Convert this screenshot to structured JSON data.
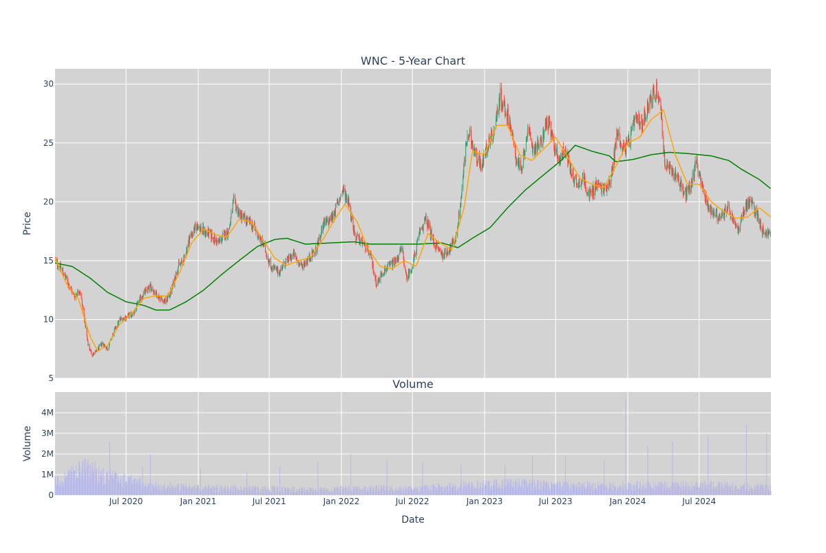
{
  "chart_data": [
    {
      "type": "candlestick",
      "title": "WNC - 5-Year Chart",
      "ylabel": "Price",
      "xlabel": "",
      "ylim": [
        5,
        31.3
      ],
      "yticks": [
        5,
        10,
        15,
        20,
        25,
        30
      ],
      "x_range": [
        "2020-01-02",
        "2024-12-31"
      ],
      "x_ticks": [
        {
          "date": "2020-07-01",
          "label": "Jul 2020"
        },
        {
          "date": "2021-01-01",
          "label": "Jan 2021"
        },
        {
          "date": "2021-07-01",
          "label": "Jul 2021"
        },
        {
          "date": "2022-01-01",
          "label": "Jan 2022"
        },
        {
          "date": "2022-07-01",
          "label": "Jul 2022"
        },
        {
          "date": "2023-01-01",
          "label": "Jan 2023"
        },
        {
          "date": "2023-07-01",
          "label": "Jul 2023"
        },
        {
          "date": "2024-01-01",
          "label": "Jan 2024"
        },
        {
          "date": "2024-07-01",
          "label": "Jul 2024"
        }
      ],
      "colors": {
        "up": "#3d9970",
        "down": "#ff4136",
        "ma_short": "#ffa500",
        "ma_long": "#008000",
        "plot_bg": "#d3d3d3",
        "grid": "#ffffff"
      },
      "price_keypoints": [
        [
          "2020-01-02",
          15.0
        ],
        [
          "2020-01-20",
          14.2
        ],
        [
          "2020-02-05",
          13.0
        ],
        [
          "2020-02-20",
          12.0
        ],
        [
          "2020-03-05",
          12.5
        ],
        [
          "2020-03-15",
          10.5
        ],
        [
          "2020-03-25",
          8.0
        ],
        [
          "2020-04-05",
          7.0
        ],
        [
          "2020-04-15",
          7.2
        ],
        [
          "2020-05-01",
          8.0
        ],
        [
          "2020-05-15",
          7.5
        ],
        [
          "2020-06-01",
          9.0
        ],
        [
          "2020-06-15",
          10.0
        ],
        [
          "2020-07-01",
          10.2
        ],
        [
          "2020-07-20",
          10.5
        ],
        [
          "2020-08-10",
          12.0
        ],
        [
          "2020-09-01",
          12.8
        ],
        [
          "2020-09-20",
          12.0
        ],
        [
          "2020-10-10",
          11.5
        ],
        [
          "2020-10-25",
          12.5
        ],
        [
          "2020-11-10",
          14.5
        ],
        [
          "2020-11-25",
          15.0
        ],
        [
          "2020-12-10",
          17.0
        ],
        [
          "2020-12-30",
          18.0
        ],
        [
          "2021-01-15",
          17.5
        ],
        [
          "2021-02-01",
          17.2
        ],
        [
          "2021-02-20",
          16.5
        ],
        [
          "2021-03-05",
          17.0
        ],
        [
          "2021-03-20",
          17.5
        ],
        [
          "2021-04-01",
          20.0
        ],
        [
          "2021-04-15",
          19.0
        ],
        [
          "2021-05-01",
          18.5
        ],
        [
          "2021-05-20",
          18.0
        ],
        [
          "2021-06-05",
          17.0
        ],
        [
          "2021-06-20",
          16.0
        ],
        [
          "2021-07-05",
          14.5
        ],
        [
          "2021-07-25",
          14.0
        ],
        [
          "2021-08-10",
          14.8
        ],
        [
          "2021-09-01",
          15.5
        ],
        [
          "2021-09-20",
          14.5
        ],
        [
          "2021-10-10",
          15.2
        ],
        [
          "2021-10-30",
          16.0
        ],
        [
          "2021-11-15",
          18.0
        ],
        [
          "2021-12-05",
          18.5
        ],
        [
          "2021-12-25",
          20.0
        ],
        [
          "2022-01-05",
          21.0
        ],
        [
          "2022-01-20",
          20.0
        ],
        [
          "2022-02-05",
          17.0
        ],
        [
          "2022-02-25",
          16.5
        ],
        [
          "2022-03-15",
          15.5
        ],
        [
          "2022-04-01",
          13.0
        ],
        [
          "2022-04-15",
          14.0
        ],
        [
          "2022-05-01",
          14.5
        ],
        [
          "2022-05-20",
          15.0
        ],
        [
          "2022-06-05",
          16.0
        ],
        [
          "2022-06-15",
          13.5
        ],
        [
          "2022-07-01",
          14.5
        ],
        [
          "2022-07-20",
          17.5
        ],
        [
          "2022-08-05",
          18.5
        ],
        [
          "2022-08-25",
          16.5
        ],
        [
          "2022-09-15",
          15.5
        ],
        [
          "2022-10-05",
          16.0
        ],
        [
          "2022-10-20",
          17.0
        ],
        [
          "2022-11-01",
          20.0
        ],
        [
          "2022-11-15",
          25.0
        ],
        [
          "2022-11-25",
          25.5
        ],
        [
          "2022-12-10",
          24.0
        ],
        [
          "2022-12-25",
          23.0
        ],
        [
          "2023-01-10",
          25.0
        ],
        [
          "2023-01-25",
          26.0
        ],
        [
          "2023-02-10",
          29.0
        ],
        [
          "2023-02-20",
          28.0
        ],
        [
          "2023-03-05",
          27.0
        ],
        [
          "2023-03-20",
          24.0
        ],
        [
          "2023-04-05",
          22.5
        ],
        [
          "2023-04-20",
          26.0
        ],
        [
          "2023-05-05",
          24.5
        ],
        [
          "2023-05-25",
          25.0
        ],
        [
          "2023-06-10",
          27.0
        ],
        [
          "2023-06-25",
          25.0
        ],
        [
          "2023-07-10",
          23.5
        ],
        [
          "2023-07-25",
          24.5
        ],
        [
          "2023-08-10",
          22.5
        ],
        [
          "2023-08-25",
          21.5
        ],
        [
          "2023-09-10",
          22.0
        ],
        [
          "2023-09-25",
          20.5
        ],
        [
          "2023-10-15",
          21.5
        ],
        [
          "2023-11-01",
          21.0
        ],
        [
          "2023-11-20",
          22.0
        ],
        [
          "2023-12-05",
          26.0
        ],
        [
          "2023-12-20",
          24.5
        ],
        [
          "2024-01-05",
          25.0
        ],
        [
          "2024-01-20",
          27.0
        ],
        [
          "2024-02-05",
          26.5
        ],
        [
          "2024-02-25",
          28.5
        ],
        [
          "2024-03-15",
          29.5
        ],
        [
          "2024-03-25",
          28.0
        ],
        [
          "2024-04-05",
          23.0
        ],
        [
          "2024-04-25",
          22.5
        ],
        [
          "2024-05-10",
          22.0
        ],
        [
          "2024-05-25",
          20.5
        ],
        [
          "2024-06-10",
          21.5
        ],
        [
          "2024-06-25",
          23.5
        ],
        [
          "2024-07-10",
          21.0
        ],
        [
          "2024-07-25",
          19.5
        ],
        [
          "2024-08-10",
          19.0
        ],
        [
          "2024-08-25",
          18.5
        ],
        [
          "2024-09-10",
          19.5
        ],
        [
          "2024-09-25",
          18.5
        ],
        [
          "2024-10-10",
          17.5
        ],
        [
          "2024-10-25",
          19.5
        ],
        [
          "2024-11-10",
          20.0
        ],
        [
          "2024-11-25",
          19.0
        ],
        [
          "2024-12-10",
          17.5
        ],
        [
          "2024-12-31",
          17.2
        ]
      ],
      "sma_short_keypoints": [
        [
          "2020-01-02",
          15.2
        ],
        [
          "2020-02-01",
          13.0
        ],
        [
          "2020-03-01",
          11.8
        ],
        [
          "2020-04-01",
          8.5
        ],
        [
          "2020-04-20",
          7.3
        ],
        [
          "2020-05-15",
          7.8
        ],
        [
          "2020-06-15",
          9.6
        ],
        [
          "2020-07-15",
          10.5
        ],
        [
          "2020-08-15",
          11.8
        ],
        [
          "2020-09-15",
          12.0
        ],
        [
          "2020-10-15",
          12.0
        ],
        [
          "2020-11-15",
          14.0
        ],
        [
          "2020-12-15",
          16.5
        ],
        [
          "2021-01-15",
          17.7
        ],
        [
          "2021-02-15",
          17.2
        ],
        [
          "2021-03-15",
          17.0
        ],
        [
          "2021-04-15",
          18.5
        ],
        [
          "2021-05-15",
          18.3
        ],
        [
          "2021-06-15",
          16.8
        ],
        [
          "2021-07-15",
          15.2
        ],
        [
          "2021-08-15",
          14.6
        ],
        [
          "2021-09-15",
          15.0
        ],
        [
          "2021-10-15",
          15.3
        ],
        [
          "2021-11-15",
          16.8
        ],
        [
          "2021-12-15",
          18.5
        ],
        [
          "2022-01-10",
          19.8
        ],
        [
          "2022-02-10",
          18.3
        ],
        [
          "2022-03-10",
          16.0
        ],
        [
          "2022-04-10",
          14.5
        ],
        [
          "2022-05-10",
          14.3
        ],
        [
          "2022-06-10",
          15.0
        ],
        [
          "2022-07-10",
          14.5
        ],
        [
          "2022-08-10",
          17.3
        ],
        [
          "2022-09-10",
          16.5
        ],
        [
          "2022-10-10",
          15.9
        ],
        [
          "2022-11-10",
          19.5
        ],
        [
          "2022-12-01",
          24.3
        ],
        [
          "2023-01-01",
          24.0
        ],
        [
          "2023-02-01",
          26.5
        ],
        [
          "2023-03-01",
          26.5
        ],
        [
          "2023-04-01",
          24.0
        ],
        [
          "2023-05-01",
          23.5
        ],
        [
          "2023-06-01",
          24.5
        ],
        [
          "2023-07-01",
          25.5
        ],
        [
          "2023-08-01",
          23.8
        ],
        [
          "2023-09-01",
          22.0
        ],
        [
          "2023-10-01",
          21.5
        ],
        [
          "2023-11-01",
          21.2
        ],
        [
          "2023-12-01",
          23.0
        ],
        [
          "2024-01-01",
          25.0
        ],
        [
          "2024-02-01",
          25.5
        ],
        [
          "2024-03-01",
          27.0
        ],
        [
          "2024-04-01",
          27.8
        ],
        [
          "2024-05-01",
          24.0
        ],
        [
          "2024-06-01",
          21.5
        ],
        [
          "2024-07-01",
          21.5
        ],
        [
          "2024-08-01",
          20.0
        ],
        [
          "2024-09-01",
          19.2
        ],
        [
          "2024-10-01",
          18.6
        ],
        [
          "2024-11-01",
          18.7
        ],
        [
          "2024-12-01",
          19.5
        ],
        [
          "2024-12-31",
          18.7
        ]
      ],
      "sma_long_keypoints": [
        [
          "2020-01-02",
          14.8
        ],
        [
          "2020-02-15",
          14.5
        ],
        [
          "2020-04-01",
          13.5
        ],
        [
          "2020-05-15",
          12.3
        ],
        [
          "2020-07-01",
          11.5
        ],
        [
          "2020-08-15",
          11.2
        ],
        [
          "2020-09-15",
          10.8
        ],
        [
          "2020-10-20",
          10.8
        ],
        [
          "2020-12-01",
          11.5
        ],
        [
          "2021-01-15",
          12.5
        ],
        [
          "2021-03-01",
          13.8
        ],
        [
          "2021-04-15",
          15.0
        ],
        [
          "2021-06-01",
          16.2
        ],
        [
          "2021-07-15",
          16.8
        ],
        [
          "2021-08-15",
          16.9
        ],
        [
          "2021-10-01",
          16.4
        ],
        [
          "2021-12-01",
          16.5
        ],
        [
          "2022-02-01",
          16.6
        ],
        [
          "2022-03-15",
          16.4
        ],
        [
          "2022-05-15",
          16.4
        ],
        [
          "2022-07-15",
          16.4
        ],
        [
          "2022-09-15",
          16.5
        ],
        [
          "2022-10-25",
          16.1
        ],
        [
          "2022-12-01",
          16.9
        ],
        [
          "2023-01-15",
          17.8
        ],
        [
          "2023-03-01",
          19.5
        ],
        [
          "2023-04-15",
          21.0
        ],
        [
          "2023-06-01",
          22.3
        ],
        [
          "2023-07-15",
          23.5
        ],
        [
          "2023-08-20",
          24.8
        ],
        [
          "2023-10-01",
          24.3
        ],
        [
          "2023-11-15",
          23.9
        ],
        [
          "2023-12-01",
          23.4
        ],
        [
          "2024-01-15",
          23.6
        ],
        [
          "2024-03-01",
          24.0
        ],
        [
          "2024-04-15",
          24.2
        ],
        [
          "2024-06-01",
          24.1
        ],
        [
          "2024-08-01",
          23.9
        ],
        [
          "2024-09-15",
          23.5
        ],
        [
          "2024-10-15",
          22.8
        ],
        [
          "2024-12-01",
          21.9
        ],
        [
          "2024-12-31",
          21.1
        ]
      ]
    },
    {
      "type": "bar",
      "title": "Volume",
      "ylabel": "Volume",
      "xlabel": "Date",
      "ylim": [
        0,
        5000000
      ],
      "yticks": [
        {
          "value": 0,
          "label": "0"
        },
        {
          "value": 1000000,
          "label": "1M"
        },
        {
          "value": 2000000,
          "label": "2M"
        },
        {
          "value": 3000000,
          "label": "3M"
        },
        {
          "value": 4000000,
          "label": "4M"
        }
      ],
      "bar_color": "#b8b8e6",
      "volume_keypoints": [
        [
          "2020-01-02",
          600000
        ],
        [
          "2020-03-20",
          1200000
        ],
        [
          "2020-06-01",
          800000
        ],
        [
          "2020-09-01",
          450000
        ],
        [
          "2021-01-01",
          350000
        ],
        [
          "2021-06-01",
          320000
        ],
        [
          "2021-10-01",
          260000
        ],
        [
          "2022-03-01",
          320000
        ],
        [
          "2022-07-01",
          300000
        ],
        [
          "2022-11-15",
          450000
        ],
        [
          "2023-03-01",
          550000
        ],
        [
          "2023-07-01",
          450000
        ],
        [
          "2023-12-01",
          420000
        ],
        [
          "2024-03-01",
          450000
        ],
        [
          "2024-08-01",
          450000
        ],
        [
          "2024-12-31",
          350000
        ]
      ],
      "volume_spikes": [
        [
          "2020-03-12",
          1600000
        ],
        [
          "2020-03-27",
          1500000
        ],
        [
          "2020-05-20",
          2600000
        ],
        [
          "2020-08-12",
          1400000
        ],
        [
          "2020-09-01",
          2000000
        ],
        [
          "2021-01-07",
          1300000
        ],
        [
          "2021-05-05",
          1100000
        ],
        [
          "2021-07-28",
          1400000
        ],
        [
          "2021-11-02",
          1600000
        ],
        [
          "2022-01-25",
          2000000
        ],
        [
          "2022-04-27",
          1700000
        ],
        [
          "2022-07-27",
          1600000
        ],
        [
          "2022-11-02",
          1500000
        ],
        [
          "2023-02-22",
          1500000
        ],
        [
          "2023-05-03",
          1900000
        ],
        [
          "2023-07-26",
          1900000
        ],
        [
          "2023-11-02",
          1700000
        ],
        [
          "2023-12-27",
          4700000
        ],
        [
          "2024-02-21",
          2400000
        ],
        [
          "2024-04-24",
          2600000
        ],
        [
          "2024-07-24",
          2900000
        ],
        [
          "2024-10-30",
          3400000
        ],
        [
          "2024-12-20",
          3000000
        ]
      ]
    }
  ]
}
